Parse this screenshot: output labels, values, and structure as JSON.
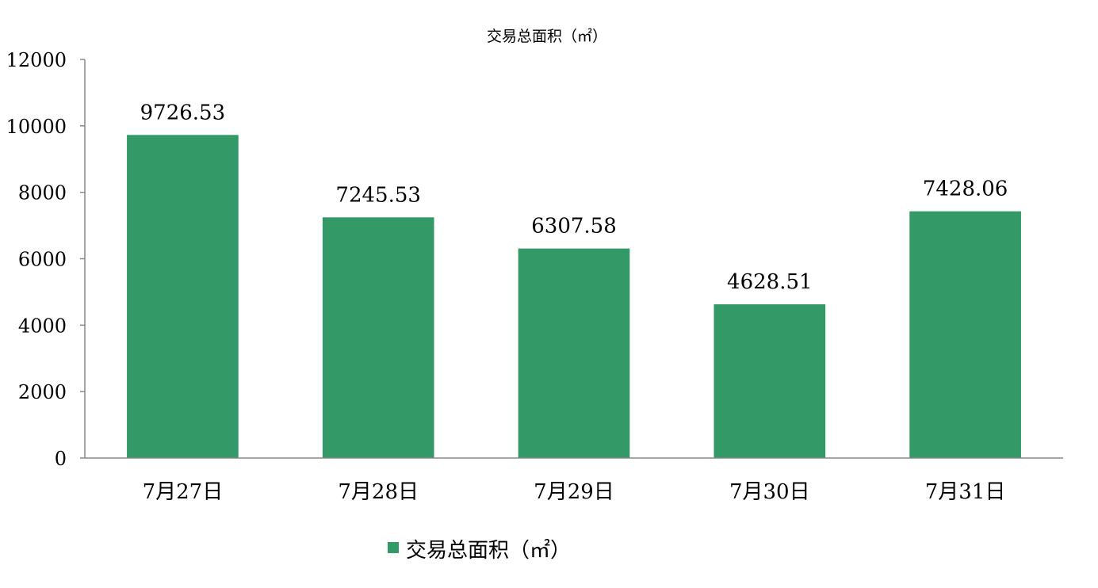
{
  "chart_data": {
    "type": "bar",
    "title": "交易总面积（㎡）",
    "xlabel": "",
    "ylabel": "",
    "categories": [
      "7月27日",
      "7月28日",
      "7月29日",
      "7月30日",
      "7月31日"
    ],
    "series": [
      {
        "name": "交易总面积（㎡）",
        "values": [
          9726.53,
          7245.53,
          6307.58,
          4628.51,
          7428.06
        ],
        "value_labels": [
          "9726.53",
          "7245.53",
          "6307.58",
          "4628.51",
          "7428.06"
        ],
        "color": "#339966"
      }
    ],
    "ylim": [
      0,
      12000
    ],
    "yticks": [
      "0",
      "2000",
      "4000",
      "6000",
      "8000",
      "10000",
      "12000"
    ],
    "grid": false,
    "legend_position": "bottom"
  }
}
